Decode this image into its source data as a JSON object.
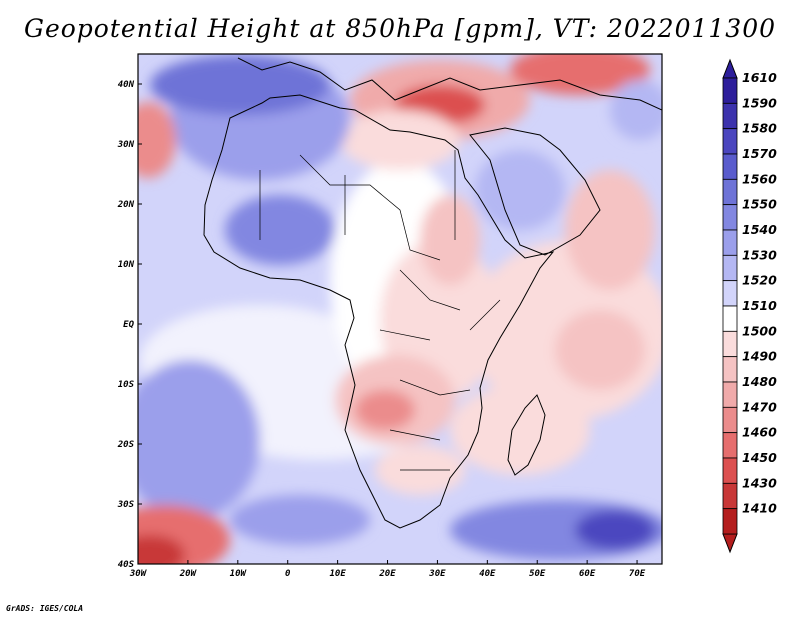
{
  "title": "Geopotential Height at 850hPa [gpm], VT: 2022011300",
  "footer": "GrADS: IGES/COLA",
  "colors": {
    "low_extreme": "#b41e1e",
    "mid": "#ffffff",
    "high_extreme": "#2d1e9b"
  },
  "chart_data": {
    "type": "heatmap",
    "variable": "Geopotential Height",
    "level": "850hPa",
    "units": "gpm",
    "valid_time": "2022011300",
    "lon_range": [
      -30,
      75
    ],
    "lat_range": [
      -40,
      45
    ],
    "lon_ticks": [
      "30W",
      "20W",
      "10W",
      "0",
      "10E",
      "20E",
      "30E",
      "40E",
      "50E",
      "60E",
      "70E"
    ],
    "lat_ticks": [
      "40N",
      "30N",
      "20N",
      "10N",
      "EQ",
      "10S",
      "20S",
      "30S",
      "40S"
    ],
    "colorbar": {
      "labels": [
        "1610",
        "1590",
        "1580",
        "1570",
        "1560",
        "1550",
        "1540",
        "1530",
        "1520",
        "1510",
        "1500",
        "1490",
        "1480",
        "1470",
        "1460",
        "1450",
        "1430",
        "1410"
      ],
      "colors": [
        "#2d1e9b",
        "#3c32ad",
        "#4b46bf",
        "#5a5ccd",
        "#6e73d7",
        "#8287e1",
        "#9b9feb",
        "#b4b7f3",
        "#d2d4fa",
        "#ffffff",
        "#fadcdc",
        "#f5c3c3",
        "#f0aaaa",
        "#eb8c8c",
        "#e66e6e",
        "#dc5050",
        "#c83737",
        "#b41e1e"
      ]
    }
  }
}
